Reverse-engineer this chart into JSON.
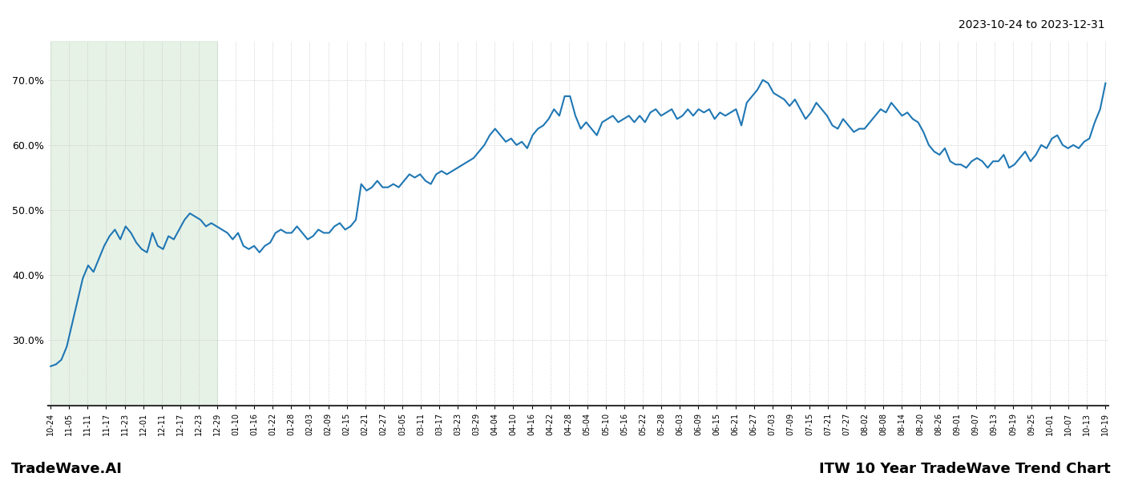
{
  "title_top_right": "2023-10-24 to 2023-12-31",
  "title_bottom_left": "TradeWave.AI",
  "title_bottom_right": "ITW 10 Year TradeWave Trend Chart",
  "line_color": "#1f77b4",
  "line_width": 1.5,
  "background_color": "#ffffff",
  "shaded_region_color": "#d4e8d4",
  "shaded_region_alpha": 0.55,
  "ylim": [
    20,
    76
  ],
  "yticks": [
    30.0,
    40.0,
    50.0,
    60.0,
    70.0
  ],
  "x_labels": [
    "10-24",
    "11-05",
    "11-11",
    "11-17",
    "11-23",
    "12-01",
    "12-11",
    "12-17",
    "12-23",
    "12-29",
    "01-10",
    "01-16",
    "01-22",
    "01-28",
    "02-03",
    "02-09",
    "02-15",
    "02-21",
    "02-27",
    "03-05",
    "03-11",
    "03-17",
    "03-23",
    "03-29",
    "04-04",
    "04-10",
    "04-16",
    "04-22",
    "04-28",
    "05-04",
    "05-10",
    "05-16",
    "05-22",
    "05-28",
    "06-03",
    "06-09",
    "06-15",
    "06-21",
    "06-27",
    "07-03",
    "07-09",
    "07-15",
    "07-21",
    "07-27",
    "08-02",
    "08-08",
    "08-14",
    "08-20",
    "08-26",
    "09-01",
    "09-07",
    "09-13",
    "09-19",
    "09-25",
    "10-01",
    "10-07",
    "10-13",
    "10-19"
  ],
  "shaded_start_label": "10-24",
  "shaded_end_label": "12-29",
  "y_values": [
    26.0,
    26.3,
    27.0,
    29.0,
    32.5,
    36.0,
    39.5,
    41.5,
    40.5,
    42.5,
    44.5,
    46.0,
    47.0,
    45.5,
    47.5,
    46.5,
    45.0,
    44.0,
    43.5,
    46.5,
    44.5,
    44.0,
    46.0,
    45.5,
    47.0,
    48.5,
    49.5,
    49.0,
    48.5,
    47.5,
    48.0,
    47.5,
    47.0,
    46.5,
    45.5,
    46.5,
    44.5,
    44.0,
    44.5,
    43.5,
    44.5,
    45.0,
    46.5,
    47.0,
    46.5,
    46.5,
    47.5,
    46.5,
    45.5,
    46.0,
    47.0,
    46.5,
    46.5,
    47.5,
    48.0,
    47.0,
    47.5,
    48.5,
    54.0,
    53.0,
    53.5,
    54.5,
    53.5,
    53.5,
    54.0,
    53.5,
    54.5,
    55.5,
    55.0,
    55.5,
    54.5,
    54.0,
    55.5,
    56.0,
    55.5,
    56.0,
    56.5,
    57.0,
    57.5,
    58.0,
    59.0,
    60.0,
    61.5,
    62.5,
    61.5,
    60.5,
    61.0,
    60.0,
    60.5,
    59.5,
    61.5,
    62.5,
    63.0,
    64.0,
    65.5,
    64.5,
    67.5,
    67.5,
    64.5,
    62.5,
    63.5,
    62.5,
    61.5,
    63.5,
    64.0,
    64.5,
    63.5,
    64.0,
    64.5,
    63.5,
    64.5,
    63.5,
    65.0,
    65.5,
    64.5,
    65.0,
    65.5,
    64.0,
    64.5,
    65.5,
    64.5,
    65.5,
    65.0,
    65.5,
    64.0,
    65.0,
    64.5,
    65.0,
    65.5,
    63.0,
    66.5,
    67.5,
    68.5,
    70.0,
    69.5,
    68.0,
    67.5,
    67.0,
    66.0,
    67.0,
    65.5,
    64.0,
    65.0,
    66.5,
    65.5,
    64.5,
    63.0,
    62.5,
    64.0,
    63.0,
    62.0,
    62.5,
    62.5,
    63.5,
    64.5,
    65.5,
    65.0,
    66.5,
    65.5,
    64.5,
    65.0,
    64.0,
    63.5,
    62.0,
    60.0,
    59.0,
    58.5,
    59.5,
    57.5,
    57.0,
    57.0,
    56.5,
    57.5,
    58.0,
    57.5,
    56.5,
    57.5,
    57.5,
    58.5,
    56.5,
    57.0,
    58.0,
    59.0,
    57.5,
    58.5,
    60.0,
    59.5,
    61.0,
    61.5,
    60.0,
    59.5,
    60.0,
    59.5,
    60.5,
    61.0,
    63.5,
    65.5,
    69.5
  ]
}
